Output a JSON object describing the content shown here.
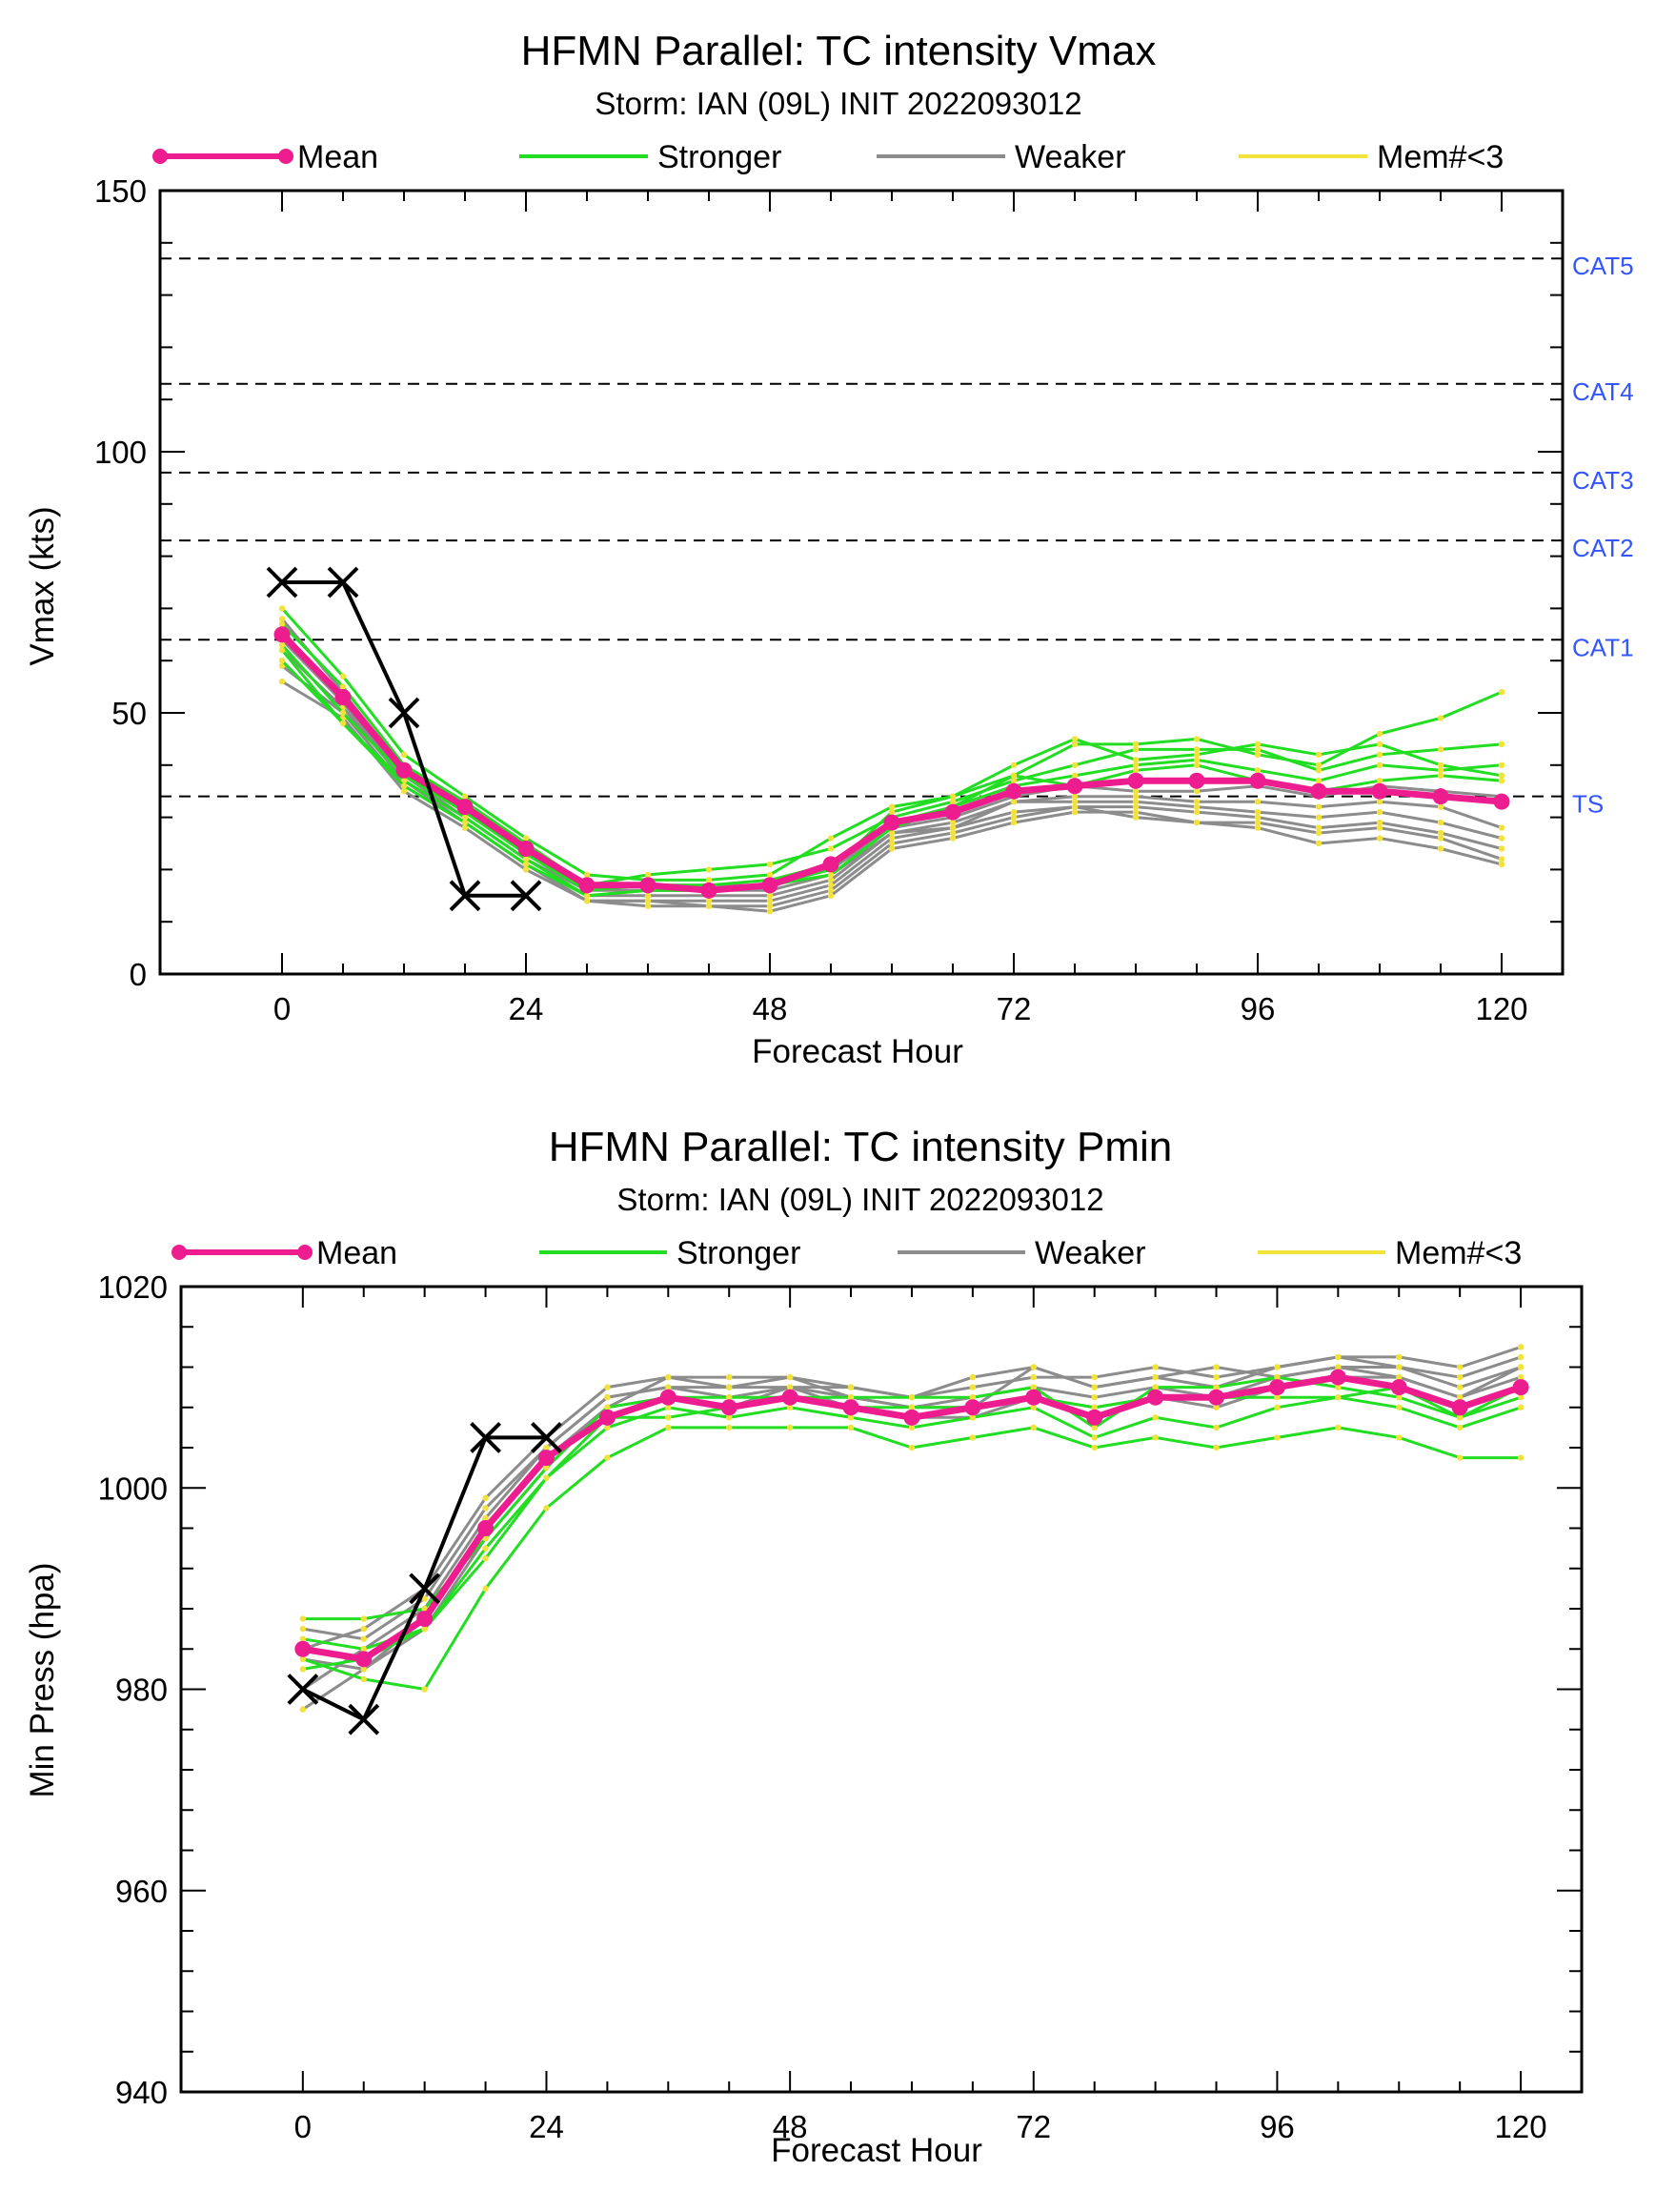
{
  "colors": {
    "mean": "#ee1d8f",
    "stronger": "#22dd22",
    "weaker": "#8c8c8c",
    "member_marker": "#f2e23c",
    "obs": "#000000",
    "category_label": "#3355ff"
  },
  "chart_data": [
    {
      "type": "line",
      "title": "HFMN Parallel: TC intensity Vmax",
      "subtitle": "Storm: IAN (09L) INIT 2022093012",
      "xlabel": "Forecast Hour",
      "ylabel": "Vmax (kts)",
      "xlim": [
        -12,
        126
      ],
      "ylim": [
        0,
        150
      ],
      "xticks": [
        0,
        24,
        48,
        72,
        96,
        120
      ],
      "yticks": [
        0,
        50,
        100,
        150
      ],
      "legend": {
        "position": "top",
        "entries": [
          {
            "label": "Mean",
            "color": "#ee1d8f"
          },
          {
            "label": "Stronger",
            "color": "#22dd22"
          },
          {
            "label": "Weaker",
            "color": "#8c8c8c"
          },
          {
            "label": "Mem#<3",
            "color": "#f2e23c"
          }
        ]
      },
      "reference_lines": [
        {
          "label": "CAT5",
          "value": 137
        },
        {
          "label": "CAT4",
          "value": 113
        },
        {
          "label": "CAT3",
          "value": 96
        },
        {
          "label": "CAT2",
          "value": 83
        },
        {
          "label": "CAT1",
          "value": 64
        },
        {
          "label": "TS",
          "value": 34
        }
      ],
      "x": [
        0,
        6,
        12,
        18,
        24,
        30,
        36,
        42,
        48,
        54,
        60,
        66,
        72,
        78,
        84,
        90,
        96,
        102,
        108,
        114,
        120
      ],
      "series": [
        {
          "name": "Mean",
          "role": "mean",
          "values": [
            65,
            53,
            39,
            32,
            24,
            17,
            17,
            16,
            17,
            21,
            29,
            31,
            35,
            36,
            37,
            37,
            37,
            35,
            35,
            34,
            33
          ]
        },
        {
          "role": "obs",
          "x": [
            0,
            6,
            12,
            18,
            24
          ],
          "values": [
            75,
            75,
            50,
            15,
            15
          ]
        },
        {
          "role": "stronger",
          "values": [
            70,
            57,
            42,
            34,
            26,
            19,
            18,
            18,
            19,
            26,
            32,
            34,
            38,
            44,
            44,
            45,
            42,
            40,
            46,
            49,
            54
          ]
        },
        {
          "role": "stronger",
          "values": [
            67,
            55,
            40,
            33,
            25,
            17,
            19,
            20,
            21,
            24,
            30,
            33,
            37,
            40,
            43,
            43,
            43,
            39,
            42,
            43,
            44
          ]
        },
        {
          "role": "stronger",
          "values": [
            63,
            50,
            38,
            31,
            23,
            16,
            17,
            17,
            18,
            21,
            29,
            32,
            36,
            38,
            40,
            41,
            39,
            37,
            40,
            39,
            40
          ]
        },
        {
          "role": "stronger",
          "values": [
            62,
            48,
            37,
            30,
            22,
            15,
            16,
            16,
            17,
            20,
            31,
            34,
            40,
            45,
            41,
            42,
            44,
            42,
            44,
            40,
            38
          ]
        },
        {
          "role": "stronger",
          "values": [
            60,
            48,
            36,
            29,
            21,
            15,
            16,
            16,
            17,
            19,
            28,
            32,
            38,
            36,
            39,
            40,
            37,
            35,
            37,
            38,
            37
          ]
        },
        {
          "role": "weaker",
          "values": [
            68,
            54,
            39,
            31,
            23,
            16,
            17,
            17,
            17,
            20,
            28,
            30,
            34,
            36,
            35,
            35,
            36,
            34,
            36,
            35,
            34
          ]
        },
        {
          "role": "weaker",
          "values": [
            64,
            52,
            38,
            30,
            22,
            16,
            16,
            16,
            16,
            19,
            27,
            29,
            33,
            34,
            34,
            33,
            33,
            32,
            33,
            32,
            28
          ]
        },
        {
          "role": "weaker",
          "values": [
            62,
            51,
            37,
            30,
            22,
            15,
            15,
            15,
            15,
            18,
            27,
            28,
            33,
            33,
            33,
            32,
            31,
            30,
            31,
            29,
            26
          ]
        },
        {
          "role": "weaker",
          "values": [
            59,
            50,
            36,
            29,
            21,
            14,
            14,
            14,
            14,
            17,
            26,
            28,
            31,
            32,
            32,
            31,
            30,
            28,
            29,
            27,
            24
          ]
        },
        {
          "role": "weaker",
          "values": [
            56,
            49,
            35,
            28,
            20,
            14,
            14,
            13,
            13,
            16,
            25,
            27,
            30,
            32,
            30,
            29,
            29,
            27,
            28,
            26,
            22
          ]
        },
        {
          "role": "weaker",
          "values": [
            66,
            52,
            37,
            29,
            21,
            14,
            13,
            13,
            12,
            15,
            24,
            26,
            29,
            31,
            31,
            29,
            28,
            25,
            26,
            24,
            21
          ]
        }
      ]
    },
    {
      "type": "line",
      "title": "HFMN Parallel: TC intensity Pmin",
      "subtitle": "Storm: IAN (09L) INIT 2022093012",
      "xlabel": "Forecast Hour",
      "ylabel": "Min Press (hpa)",
      "xlim": [
        -12,
        126
      ],
      "ylim": [
        940,
        1020
      ],
      "xticks": [
        0,
        24,
        48,
        72,
        96,
        120
      ],
      "yticks": [
        940,
        960,
        980,
        1000,
        1020
      ],
      "legend": {
        "position": "top",
        "entries": [
          {
            "label": "Mean",
            "color": "#ee1d8f"
          },
          {
            "label": "Stronger",
            "color": "#22dd22"
          },
          {
            "label": "Weaker",
            "color": "#8c8c8c"
          },
          {
            "label": "Mem#<3",
            "color": "#f2e23c"
          }
        ]
      },
      "x": [
        0,
        6,
        12,
        18,
        24,
        30,
        36,
        42,
        48,
        54,
        60,
        66,
        72,
        78,
        84,
        90,
        96,
        102,
        108,
        114,
        120
      ],
      "series": [
        {
          "name": "Mean",
          "role": "mean",
          "values": [
            984,
            983,
            987,
            996,
            1003,
            1007,
            1009,
            1008,
            1009,
            1008,
            1007,
            1008,
            1009,
            1007,
            1009,
            1009,
            1010,
            1011,
            1010,
            1008,
            1010
          ]
        },
        {
          "role": "obs",
          "x": [
            0,
            6,
            12,
            18,
            24
          ],
          "values": [
            980,
            977,
            990,
            1005,
            1005
          ]
        },
        {
          "role": "stronger",
          "values": [
            983,
            981,
            980,
            990,
            998,
            1003,
            1006,
            1006,
            1006,
            1006,
            1004,
            1005,
            1006,
            1004,
            1005,
            1004,
            1005,
            1006,
            1005,
            1003,
            1003
          ]
        },
        {
          "role": "stronger",
          "values": [
            985,
            984,
            986,
            994,
            1001,
            1006,
            1008,
            1007,
            1008,
            1007,
            1006,
            1007,
            1008,
            1005,
            1007,
            1006,
            1008,
            1009,
            1008,
            1006,
            1008
          ]
        },
        {
          "role": "stronger",
          "values": [
            987,
            987,
            988,
            995,
            1002,
            1008,
            1009,
            1009,
            1009,
            1009,
            1009,
            1009,
            1010,
            1006,
            1010,
            1010,
            1011,
            1010,
            1009,
            1007,
            1009
          ]
        },
        {
          "role": "stronger",
          "values": [
            982,
            983,
            986,
            993,
            1001,
            1007,
            1007,
            1008,
            1009,
            1008,
            1008,
            1008,
            1009,
            1008,
            1009,
            1009,
            1009,
            1009,
            1010,
            1007,
            1010
          ]
        },
        {
          "role": "weaker",
          "values": [
            986,
            985,
            989,
            998,
            1004,
            1009,
            1010,
            1009,
            1010,
            1009,
            1008,
            1009,
            1010,
            1009,
            1010,
            1009,
            1011,
            1012,
            1011,
            1009,
            1011
          ]
        },
        {
          "role": "weaker",
          "values": [
            984,
            986,
            990,
            999,
            1005,
            1010,
            1011,
            1010,
            1011,
            1010,
            1009,
            1011,
            1012,
            1010,
            1011,
            1010,
            1012,
            1013,
            1012,
            1011,
            1013
          ]
        },
        {
          "role": "weaker",
          "values": [
            980,
            984,
            988,
            997,
            1004,
            1009,
            1010,
            1010,
            1010,
            1010,
            1009,
            1010,
            1011,
            1011,
            1012,
            1011,
            1012,
            1013,
            1013,
            1012,
            1014
          ]
        },
        {
          "role": "weaker",
          "values": [
            978,
            982,
            987,
            996,
            1003,
            1008,
            1011,
            1011,
            1011,
            1009,
            1008,
            1008,
            1012,
            1010,
            1011,
            1012,
            1011,
            1012,
            1012,
            1010,
            1012
          ]
        },
        {
          "role": "weaker",
          "values": [
            983,
            982,
            986,
            995,
            1002,
            1008,
            1009,
            1008,
            1010,
            1008,
            1007,
            1007,
            1009,
            1008,
            1009,
            1008,
            1010,
            1011,
            1011,
            1009,
            1012
          ]
        }
      ]
    }
  ]
}
